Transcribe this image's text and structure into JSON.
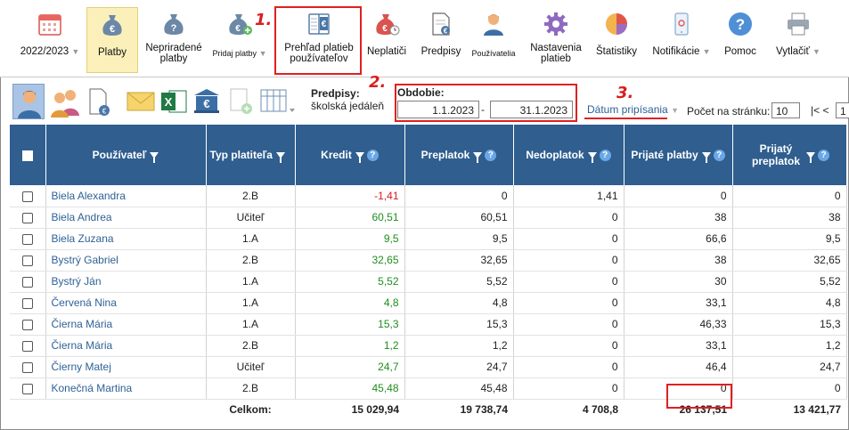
{
  "toolbar": {
    "items": [
      {
        "label": "2022/2023",
        "icon": "calendar-icon"
      },
      {
        "label": "Platby",
        "icon": "money-bag-euro-icon"
      },
      {
        "label": "Nepriradené platby",
        "icon": "money-bag-question-icon"
      },
      {
        "label": "Pridaj platby",
        "icon": "money-bag-add-icon"
      },
      {
        "label": "Prehľad platieb používateľov",
        "icon": "book-euro-icon"
      },
      {
        "label": "Neplatiči",
        "icon": "money-bag-clock-icon"
      },
      {
        "label": "Predpisy",
        "icon": "document-euro-icon"
      },
      {
        "label": "Používatelia",
        "icon": "user-icon"
      },
      {
        "label": "Nastavenia platieb",
        "icon": "gear-icon"
      },
      {
        "label": "Štatistiky",
        "icon": "pie-chart-icon"
      },
      {
        "label": "Notifikácie",
        "icon": "phone-icon"
      },
      {
        "label": "Pomoc",
        "icon": "help-icon"
      },
      {
        "label": "Vytlačiť",
        "icon": "printer-icon"
      }
    ],
    "annotations": {
      "one": "1.",
      "two": "2.",
      "three": "3."
    }
  },
  "subbar": {
    "predpisy_label": "Predpisy:",
    "predpisy_value": "školská jedáleň",
    "obdobie_label": "Obdobie:",
    "date_from": "1.1.2023",
    "date_sep": "-",
    "date_to": "31.1.2023",
    "date_mode": "Dátum pripísania",
    "per_page_label": "Počet na stránku:",
    "per_page_value": "10",
    "pager_first": "|< <",
    "pager_page": "1"
  },
  "table": {
    "headers": [
      "Používateľ",
      "Typ platiteľa",
      "Kredit",
      "Preplatok",
      "Nedoplatok",
      "Prijaté platby",
      "Prijatý preplatok"
    ],
    "rows": [
      {
        "name": "Biela Alexandra",
        "type": "2.B",
        "kredit": "-1,41",
        "preplatok": "0",
        "nedoplatok": "1,41",
        "prijate": "0",
        "prijaty_preplatok": "0"
      },
      {
        "name": "Biela Andrea",
        "type": "Učiteľ",
        "kredit": "60,51",
        "preplatok": "60,51",
        "nedoplatok": "0",
        "prijate": "38",
        "prijaty_preplatok": "38"
      },
      {
        "name": "Biela Zuzana",
        "type": "1.A",
        "kredit": "9,5",
        "preplatok": "9,5",
        "nedoplatok": "0",
        "prijate": "66,6",
        "prijaty_preplatok": "9,5"
      },
      {
        "name": "Bystrý Gabriel",
        "type": "2.B",
        "kredit": "32,65",
        "preplatok": "32,65",
        "nedoplatok": "0",
        "prijate": "38",
        "prijaty_preplatok": "32,65"
      },
      {
        "name": "Bystrý Ján",
        "type": "1.A",
        "kredit": "5,52",
        "preplatok": "5,52",
        "nedoplatok": "0",
        "prijate": "30",
        "prijaty_preplatok": "5,52"
      },
      {
        "name": "Červená Nina",
        "type": "1.A",
        "kredit": "4,8",
        "preplatok": "4,8",
        "nedoplatok": "0",
        "prijate": "33,1",
        "prijaty_preplatok": "4,8"
      },
      {
        "name": "Čierna Mária",
        "type": "1.A",
        "kredit": "15,3",
        "preplatok": "15,3",
        "nedoplatok": "0",
        "prijate": "46,33",
        "prijaty_preplatok": "15,3"
      },
      {
        "name": "Čierna Mária",
        "type": "2.B",
        "kredit": "1,2",
        "preplatok": "1,2",
        "nedoplatok": "0",
        "prijate": "33,1",
        "prijaty_preplatok": "1,2"
      },
      {
        "name": "Čierny Matej",
        "type": "Učiteľ",
        "kredit": "24,7",
        "preplatok": "24,7",
        "nedoplatok": "0",
        "prijate": "46,4",
        "prijaty_preplatok": "24,7"
      },
      {
        "name": "Konečná Martina",
        "type": "2.B",
        "kredit": "45,48",
        "preplatok": "45,48",
        "nedoplatok": "0",
        "prijate": "0",
        "prijaty_preplatok": "0"
      }
    ],
    "totals": {
      "label": "Celkom:",
      "kredit": "15 029,94",
      "preplatok": "19 738,74",
      "nedoplatok": "4 708,8",
      "prijate": "26 137,51",
      "prijaty_preplatok": "13 421,77"
    }
  },
  "colors": {
    "header": "#2f5e8f",
    "accent_red": "#e02020",
    "active_bg": "#fbf0b9",
    "link": "#2f6196",
    "positive": "#1e8e1e"
  }
}
